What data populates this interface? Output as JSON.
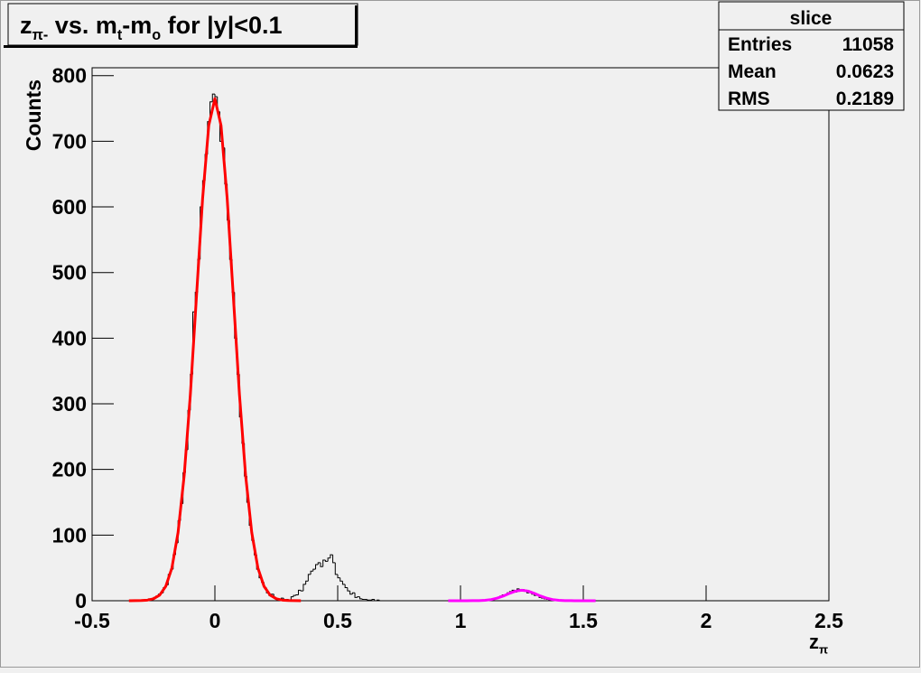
{
  "chart_data": {
    "type": "histogram",
    "title": [
      {
        "text": "z"
      },
      {
        "text": "π-",
        "sub": true
      },
      {
        "text": " vs. m"
      },
      {
        "text": "t",
        "sub": true
      },
      {
        "text": "-m"
      },
      {
        "text": "o",
        "sub": true
      },
      {
        "text": " for |y|<0.1"
      }
    ],
    "x_label": [
      {
        "text": "z"
      },
      {
        "text": "π",
        "sub": true
      }
    ],
    "y_label": "Counts",
    "xlim": [
      -0.5,
      2.5
    ],
    "ylim": [
      0,
      812
    ],
    "xticks": [
      -0.5,
      0,
      0.5,
      1,
      1.5,
      2,
      2.5
    ],
    "yticks": [
      0,
      100,
      200,
      300,
      400,
      500,
      600,
      700,
      800
    ],
    "stats": {
      "title": "slice",
      "rows": [
        [
          "Entries",
          11058
        ],
        [
          "Mean",
          0.0623
        ],
        [
          "RMS",
          0.2189
        ]
      ]
    },
    "histograms": [
      {
        "color": "#000000",
        "bins": [
          -0.3,
          -0.29,
          -0.28,
          -0.27,
          -0.26,
          -0.25,
          -0.24,
          -0.23,
          -0.22,
          -0.21,
          -0.2,
          -0.19,
          -0.18,
          -0.17,
          -0.16,
          -0.15,
          -0.14,
          -0.13,
          -0.12,
          -0.11,
          -0.1,
          -0.09,
          -0.08,
          -0.07,
          -0.06,
          -0.05,
          -0.04,
          -0.03,
          -0.02,
          -0.01,
          0,
          0.01,
          0.02,
          0.03,
          0.04,
          0.05,
          0.06,
          0.07,
          0.08,
          0.09,
          0.1,
          0.11,
          0.12,
          0.13,
          0.14,
          0.15,
          0.16,
          0.17,
          0.18,
          0.19,
          0.2,
          0.21,
          0.22,
          0.23,
          0.24,
          0.25,
          0.26,
          0.27,
          0.28,
          0.29,
          0.3,
          0.31,
          0.32,
          0.33,
          0.34,
          0.35,
          0.36,
          0.37,
          0.38,
          0.39,
          0.4,
          0.41,
          0.42,
          0.43,
          0.44,
          0.45,
          0.46,
          0.47,
          0.48,
          0.49,
          0.5,
          0.51,
          0.52,
          0.53,
          0.54,
          0.55,
          0.56,
          0.57,
          0.58,
          0.59,
          0.6,
          0.61,
          0.62,
          0.63,
          0.64,
          0.65,
          0.66,
          0.67,
          0.68,
          0.69,
          0.7
        ],
        "counts": [
          0,
          0,
          1,
          3,
          2,
          5,
          7,
          10,
          12,
          20,
          24,
          40,
          48,
          70,
          88,
          122,
          148,
          195,
          230,
          290,
          345,
          440,
          470,
          520,
          600,
          640,
          680,
          730,
          760,
          772,
          768,
          745,
          700,
          690,
          635,
          580,
          520,
          470,
          400,
          345,
          280,
          240,
          190,
          150,
          115,
          92,
          70,
          48,
          35,
          28,
          20,
          12,
          8,
          10,
          5,
          3,
          2,
          4,
          1,
          2,
          1,
          6,
          8,
          9,
          16,
          15,
          25,
          30,
          40,
          45,
          48,
          55,
          58,
          52,
          62,
          60,
          65,
          70,
          58,
          40,
          35,
          30,
          25,
          20,
          15,
          10,
          12,
          5,
          6,
          3,
          2,
          2,
          1,
          1,
          2,
          0,
          1,
          0,
          0,
          0
        ]
      },
      {
        "color": "#000000",
        "bins": [
          1.1,
          1.11,
          1.12,
          1.13,
          1.14,
          1.15,
          1.16,
          1.17,
          1.18,
          1.19,
          1.2,
          1.21,
          1.22,
          1.23,
          1.24,
          1.25,
          1.26,
          1.27,
          1.28,
          1.29,
          1.3,
          1.31,
          1.32,
          1.33,
          1.34,
          1.35,
          1.36,
          1.37,
          1.38,
          1.39,
          1.4
        ],
        "counts": [
          0,
          1,
          2,
          2,
          4,
          5,
          7,
          9,
          9,
          12,
          14,
          16,
          13,
          18,
          15,
          17,
          16,
          12,
          14,
          10,
          8,
          9,
          5,
          4,
          3,
          2,
          1,
          1,
          0,
          0
        ]
      }
    ],
    "fits": [
      {
        "color": "#ff0000",
        "x": [
          -0.35,
          -0.325,
          -0.3,
          -0.275,
          -0.25,
          -0.225,
          -0.2,
          -0.175,
          -0.15,
          -0.125,
          -0.1,
          -0.075,
          -0.05,
          -0.025,
          0,
          0.025,
          0.05,
          0.075,
          0.1,
          0.125,
          0.15,
          0.175,
          0.2,
          0.225,
          0.25,
          0.275,
          0.3,
          0.325,
          0.35
        ],
        "values": [
          0,
          0.1,
          0.3,
          0.9,
          3,
          8.5,
          22,
          50,
          104,
          191,
          314,
          464,
          613,
          724,
          765,
          724,
          613,
          464,
          314,
          191,
          104,
          50,
          22,
          8.5,
          3,
          0.9,
          0.3,
          0.1,
          0
        ]
      },
      {
        "color": "#ff00ff",
        "x": [
          0.95,
          0.975,
          1,
          1.025,
          1.05,
          1.075,
          1.1,
          1.125,
          1.15,
          1.175,
          1.2,
          1.225,
          1.25,
          1.275,
          1.3,
          1.325,
          1.35,
          1.375,
          1.4,
          1.425,
          1.45,
          1.475,
          1.5,
          1.525,
          1.55
        ],
        "values": [
          0,
          0,
          0,
          0,
          0.1,
          0.2,
          0.7,
          1.8,
          4,
          7.3,
          11.3,
          14.7,
          16,
          14.7,
          11.3,
          7.3,
          4,
          1.8,
          0.7,
          0.2,
          0.1,
          0,
          0,
          0,
          0
        ]
      }
    ]
  }
}
